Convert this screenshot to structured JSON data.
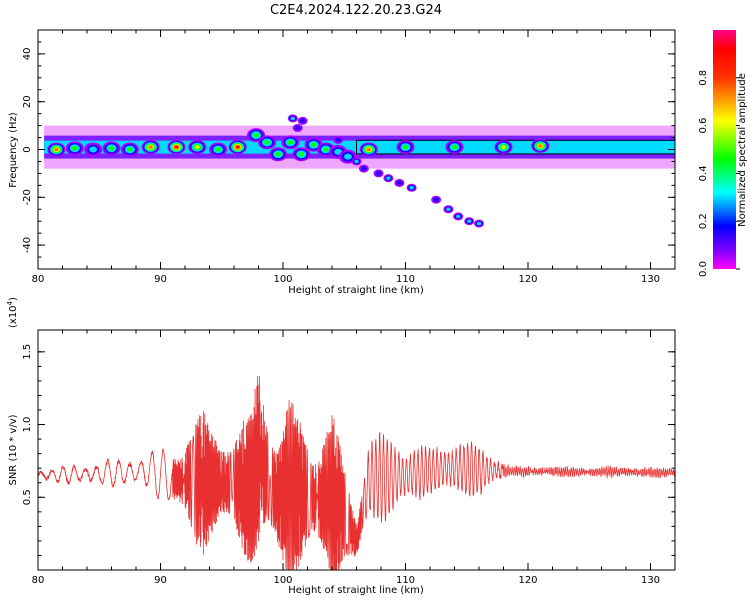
{
  "title": "C2E4.2024.122.20.23.G24",
  "colors": {
    "snr_line": "#e83030",
    "frame": "#000000"
  },
  "chart_data": [
    {
      "type": "heatmap",
      "xlabel": "Height of straight line (km)",
      "ylabel": "Frequency (Hz)",
      "xlim": [
        80,
        132
      ],
      "ylim": [
        -50,
        50
      ],
      "xticks": [
        "80",
        "90",
        "100",
        "110",
        "120",
        "130"
      ],
      "yticks": [
        "40",
        "20",
        "0",
        "-20",
        "-40"
      ],
      "colorbar": {
        "label": "Normalized spectral amplitude",
        "range": [
          0,
          1
        ],
        "ticks": [
          "0.0",
          "0.2",
          "0.4",
          "0.6",
          "0.8"
        ],
        "colormap": "hsv"
      },
      "main_band": {
        "x_range": [
          80.5,
          132
        ],
        "frequency": 1,
        "halfwidth": 3
      },
      "blobs": [
        {
          "x": 81.5,
          "y": 0,
          "a": 0.85
        },
        {
          "x": 83,
          "y": 0.5,
          "a": 0.45
        },
        {
          "x": 84.5,
          "y": 0,
          "a": 0.4
        },
        {
          "x": 86,
          "y": 0.5,
          "a": 0.5
        },
        {
          "x": 87.5,
          "y": 0,
          "a": 0.45
        },
        {
          "x": 89.2,
          "y": 1,
          "a": 0.85
        },
        {
          "x": 91.3,
          "y": 1,
          "a": 0.9
        },
        {
          "x": 93,
          "y": 1,
          "a": 0.6
        },
        {
          "x": 94.7,
          "y": 0,
          "a": 0.55
        },
        {
          "x": 96.3,
          "y": 1,
          "a": 0.95
        },
        {
          "x": 97.8,
          "y": 6,
          "a": 0.45
        },
        {
          "x": 98.7,
          "y": 3,
          "a": 0.5
        },
        {
          "x": 99.6,
          "y": -2,
          "a": 0.45
        },
        {
          "x": 100.6,
          "y": 3,
          "a": 0.5
        },
        {
          "x": 101.5,
          "y": -2,
          "a": 0.45
        },
        {
          "x": 102.5,
          "y": 2,
          "a": 0.45
        },
        {
          "x": 103.5,
          "y": 0,
          "a": 0.45
        },
        {
          "x": 104.5,
          "y": -1,
          "a": 0.4
        },
        {
          "x": 105.3,
          "y": -3,
          "a": 0.35
        },
        {
          "x": 107,
          "y": 0,
          "a": 0.8
        },
        {
          "x": 110,
          "y": 1,
          "a": 0.55
        },
        {
          "x": 114,
          "y": 1,
          "a": 0.55
        },
        {
          "x": 118,
          "y": 1,
          "a": 0.7
        },
        {
          "x": 121,
          "y": 1.5,
          "a": 0.85
        }
      ],
      "scatter_features": [
        {
          "x": 100.8,
          "y": 13,
          "a": 0.3
        },
        {
          "x": 101.6,
          "y": 12,
          "a": 0.25
        },
        {
          "x": 101.2,
          "y": 9,
          "a": 0.2
        },
        {
          "x": 104.5,
          "y": 4,
          "a": 0.2
        },
        {
          "x": 106,
          "y": -5,
          "a": 0.3
        },
        {
          "x": 106.6,
          "y": -8,
          "a": 0.25
        },
        {
          "x": 107.8,
          "y": -10,
          "a": 0.25
        },
        {
          "x": 108.6,
          "y": -12,
          "a": 0.3
        },
        {
          "x": 109.5,
          "y": -14,
          "a": 0.25
        },
        {
          "x": 110.5,
          "y": -16,
          "a": 0.3
        },
        {
          "x": 112.5,
          "y": -21,
          "a": 0.25
        },
        {
          "x": 113.5,
          "y": -25,
          "a": 0.3
        },
        {
          "x": 114.3,
          "y": -28,
          "a": 0.3
        },
        {
          "x": 115.2,
          "y": -30,
          "a": 0.35
        },
        {
          "x": 116,
          "y": -31,
          "a": 0.3
        }
      ]
    },
    {
      "type": "line",
      "xlabel": "Height of straight line (km)",
      "ylabel": "SNR (10 * v/v)",
      "yscale_label": "(x10",
      "yscale_exp": "4",
      "yscale_close": ")",
      "xlim": [
        80,
        132
      ],
      "ylim": [
        0,
        1.65
      ],
      "xticks": [
        "80",
        "90",
        "100",
        "110",
        "120",
        "130"
      ],
      "yticks": [
        "0.5",
        "1.0",
        "1.5"
      ],
      "envelope": [
        {
          "x": 80,
          "base": 0.65,
          "amp": 0.04
        },
        {
          "x": 85,
          "base": 0.66,
          "amp": 0.08
        },
        {
          "x": 89,
          "base": 0.68,
          "amp": 0.12
        },
        {
          "x": 91.5,
          "base": 0.62,
          "amp": 0.28
        },
        {
          "x": 93.5,
          "base": 0.6,
          "amp": 0.5
        },
        {
          "x": 96,
          "base": 0.6,
          "amp": 0.35
        },
        {
          "x": 97.5,
          "base": 0.55,
          "amp": 0.55
        },
        {
          "x": 98,
          "base": 0.8,
          "amp": 0.85
        },
        {
          "x": 99.5,
          "base": 0.5,
          "amp": 0.45
        },
        {
          "x": 100.5,
          "base": 0.55,
          "amp": 0.65
        },
        {
          "x": 102.5,
          "base": 0.5,
          "amp": 0.45
        },
        {
          "x": 104,
          "base": 0.5,
          "amp": 0.6
        },
        {
          "x": 105,
          "base": 0.4,
          "amp": 0.35
        },
        {
          "x": 106,
          "base": 0.2,
          "amp": 0.2
        },
        {
          "x": 107,
          "base": 0.62,
          "amp": 0.32
        },
        {
          "x": 110,
          "base": 0.65,
          "amp": 0.25
        },
        {
          "x": 112,
          "base": 0.68,
          "amp": 0.15
        },
        {
          "x": 114,
          "base": 0.7,
          "amp": 0.22
        },
        {
          "x": 116.5,
          "base": 0.68,
          "amp": 0.16
        },
        {
          "x": 118.5,
          "base": 0.68,
          "amp": 0.03
        },
        {
          "x": 132,
          "base": 0.67,
          "amp": 0.03
        }
      ]
    }
  ]
}
